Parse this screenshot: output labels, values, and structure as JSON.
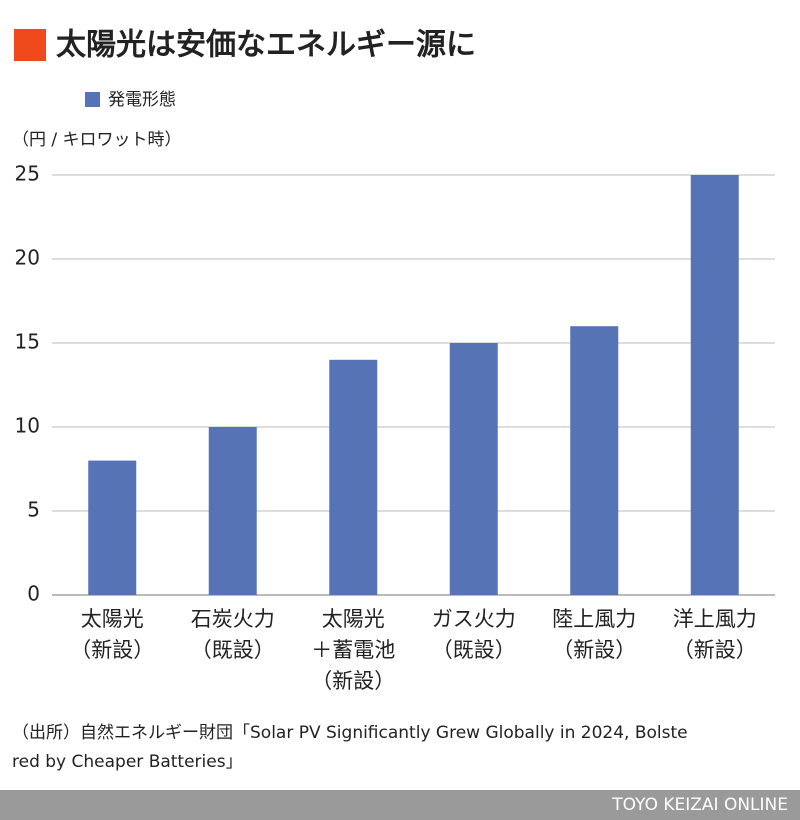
{
  "chart_data": {
    "type": "bar",
    "title": "太陽光は安価なエネルギー源に",
    "y_label": "（円 / キロワット時）",
    "categories": [
      [
        "太陽光",
        "（新設）"
      ],
      [
        "石炭火力",
        "（既設）"
      ],
      [
        "太陽光",
        "＋蓄電池",
        "（新設）"
      ],
      [
        "ガス火力",
        "（既設）"
      ],
      [
        "陸上風力",
        "（新設）"
      ],
      [
        "洋上風力",
        "（新設）"
      ]
    ],
    "series": [
      {
        "name": "発電形態",
        "color": "#5573b5",
        "values": [
          8,
          10,
          14,
          15,
          16,
          25
        ]
      }
    ],
    "ylim": [
      0,
      25
    ],
    "yticks": [
      0,
      5,
      10,
      15,
      20,
      25
    ],
    "grid": true,
    "source": [
      "（出所）自然エネルギー財団「Solar PV Significantly Grew Globally in 2024, Bolste",
      "red by Cheaper Batteries」"
    ],
    "footer": "TOYO KEIZAI ONLINE"
  }
}
